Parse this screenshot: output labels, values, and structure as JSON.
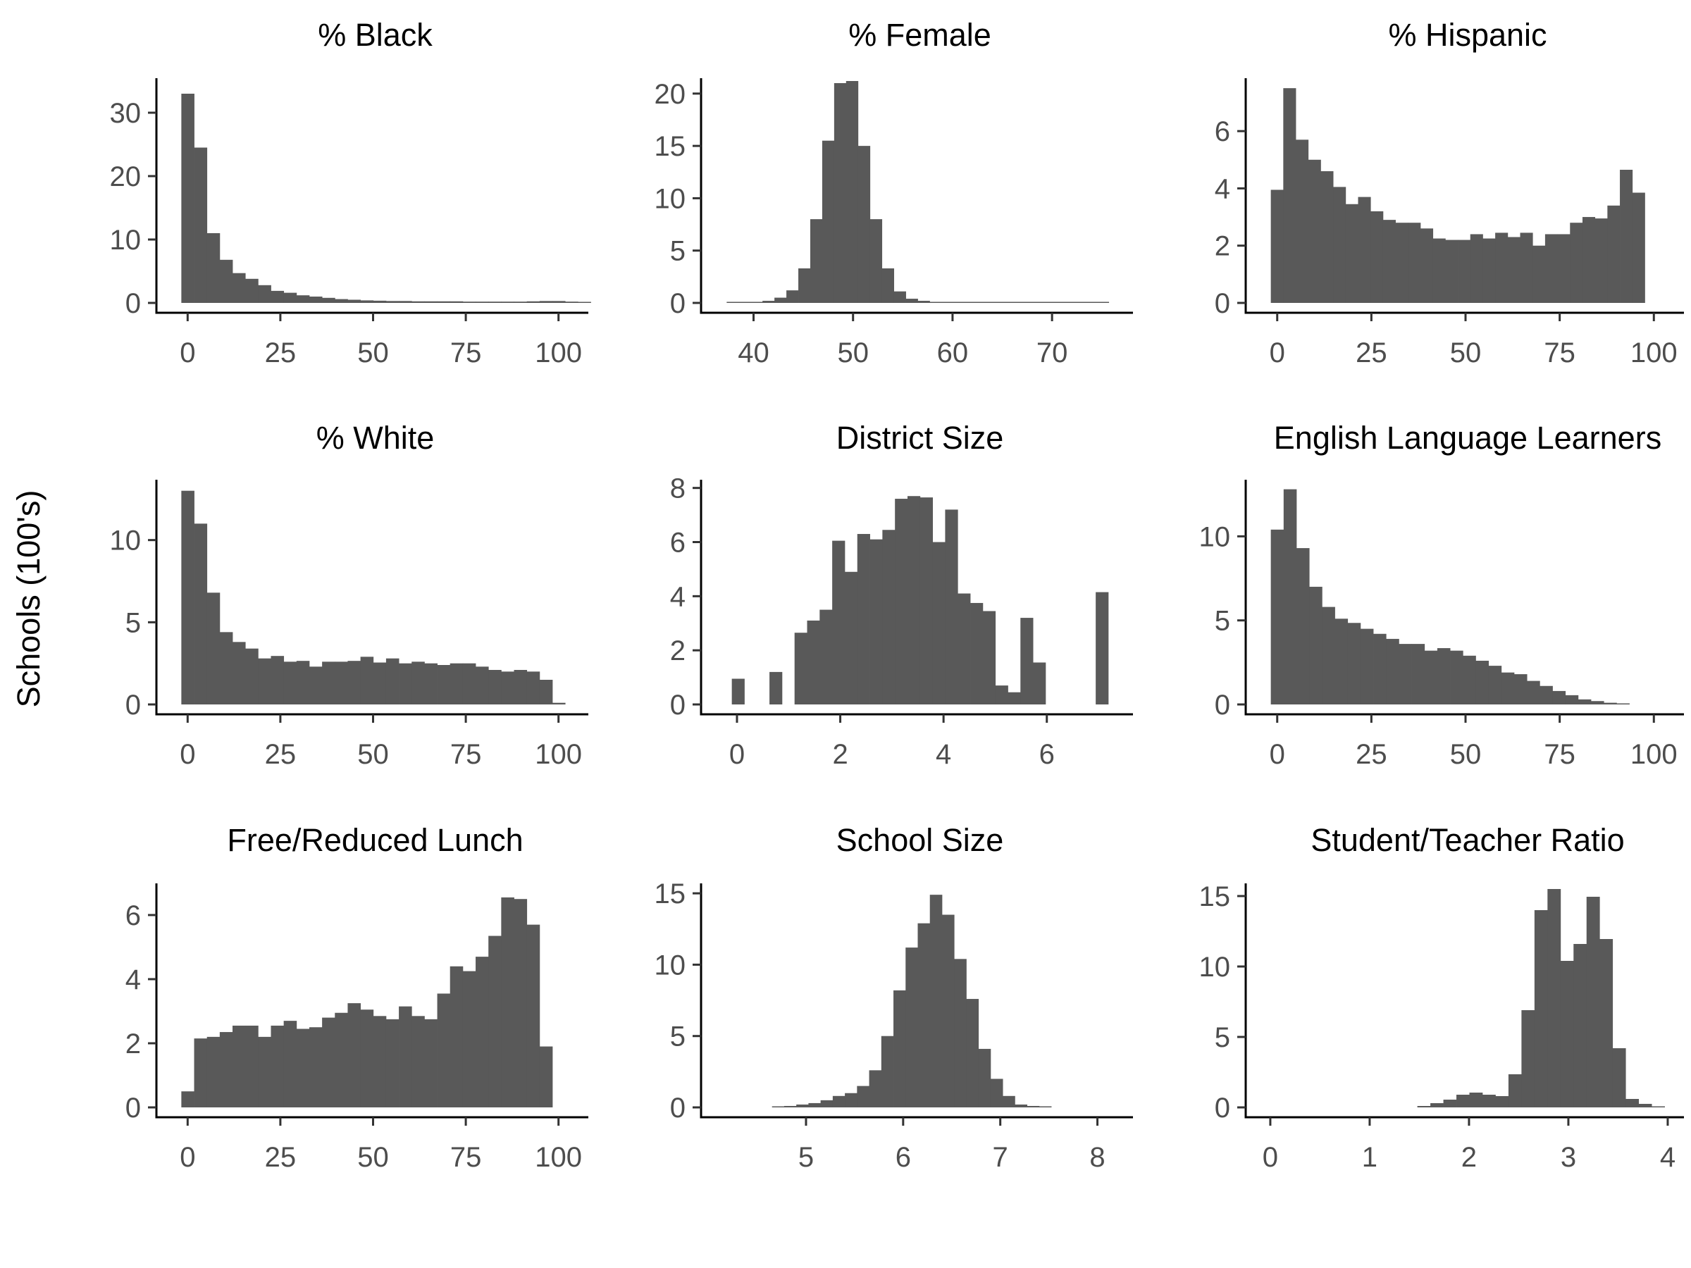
{
  "figure": {
    "ylabel": "Schools (100's)",
    "bar_color": "#595959",
    "axis_color": "#000000"
  },
  "chart_data": [
    {
      "type": "bar",
      "title": "% Black",
      "xlim": [
        -5,
        105
      ],
      "ylim": [
        0,
        35
      ],
      "xticks": [
        0,
        25,
        50,
        75,
        100
      ],
      "yticks": [
        0,
        10,
        20,
        30
      ],
      "bin_start": -1.7,
      "bin_width": 3.45,
      "values": [
        33,
        24.5,
        11,
        6.8,
        4.7,
        3.8,
        2.8,
        1.9,
        1.6,
        1.2,
        1.0,
        0.8,
        0.6,
        0.5,
        0.4,
        0.35,
        0.3,
        0.3,
        0.25,
        0.25,
        0.25,
        0.25,
        0.2,
        0.2,
        0.2,
        0.2,
        0.2,
        0.25,
        0.3,
        0.3,
        0.2,
        0.15
      ]
    },
    {
      "type": "bar",
      "title": "% Female",
      "xlim": [
        36,
        77
      ],
      "ylim": [
        0,
        21.2
      ],
      "xticks": [
        40,
        50,
        60,
        70
      ],
      "yticks": [
        0,
        5,
        10,
        15,
        20
      ],
      "bin_start": 37.3,
      "bin_width": 1.2,
      "values": [
        0.1,
        0.1,
        0.1,
        0.2,
        0.5,
        1.2,
        3.3,
        8.0,
        15.5,
        21.0,
        21.2,
        15.0,
        8.0,
        3.3,
        1.1,
        0.4,
        0.2,
        0.1,
        0.1,
        0.1,
        0.05,
        0.05,
        0.1,
        0.03,
        0.03,
        0.03,
        0.03,
        0.03,
        0.03,
        0.03,
        0.1,
        0.03
      ]
    },
    {
      "type": "bar",
      "title": "% Hispanic",
      "xlim": [
        -5,
        105
      ],
      "ylim": [
        0,
        7.75
      ],
      "xticks": [
        0,
        25,
        50,
        75,
        100
      ],
      "yticks": [
        0,
        2,
        4,
        6
      ],
      "bin_start": -1.7,
      "bin_width": 3.31,
      "values": [
        3.95,
        7.5,
        5.7,
        5.0,
        4.6,
        4.05,
        3.45,
        3.7,
        3.2,
        2.9,
        2.8,
        2.8,
        2.6,
        2.25,
        2.2,
        2.2,
        2.4,
        2.25,
        2.45,
        2.3,
        2.45,
        2.0,
        2.4,
        2.4,
        2.8,
        3.0,
        2.95,
        3.4,
        4.65,
        3.85
      ]
    },
    {
      "type": "bar",
      "title": "% White",
      "xlim": [
        -5,
        105
      ],
      "ylim": [
        0,
        13.5
      ],
      "xticks": [
        0,
        25,
        50,
        75,
        100
      ],
      "yticks": [
        0,
        5,
        10
      ],
      "bin_start": -1.7,
      "bin_width": 3.45,
      "values": [
        13.0,
        11.0,
        6.8,
        4.4,
        3.8,
        3.4,
        2.8,
        2.95,
        2.6,
        2.65,
        2.3,
        2.6,
        2.6,
        2.65,
        2.9,
        2.55,
        2.8,
        2.5,
        2.6,
        2.5,
        2.4,
        2.5,
        2.5,
        2.3,
        2.1,
        2.0,
        2.1,
        2.0,
        1.5,
        0.1
      ]
    },
    {
      "type": "bar",
      "title": "District Size",
      "xlim": [
        -0.45,
        7.45
      ],
      "ylim": [
        0,
        8.2
      ],
      "xticks": [
        0,
        2,
        4,
        6
      ],
      "yticks": [
        0,
        2,
        4,
        6,
        8
      ],
      "bin_start": -0.1,
      "bin_width": 0.243,
      "values": [
        0.95,
        0,
        0,
        1.2,
        0,
        2.65,
        3.1,
        3.5,
        6.05,
        4.9,
        6.3,
        6.1,
        6.45,
        7.6,
        7.7,
        7.65,
        6.0,
        7.2,
        4.1,
        3.75,
        3.45,
        0.7,
        0.45,
        3.2,
        1.55,
        0,
        0,
        0,
        0,
        4.15
      ]
    },
    {
      "type": "bar",
      "title": "English Language Learners",
      "xlim": [
        -5,
        105
      ],
      "ylim": [
        0,
        13.2
      ],
      "xticks": [
        0,
        25,
        50,
        75,
        100
      ],
      "yticks": [
        0,
        5,
        10
      ],
      "bin_start": -1.7,
      "bin_width": 3.4,
      "values": [
        10.4,
        12.8,
        9.3,
        7.0,
        5.8,
        5.1,
        4.85,
        4.5,
        4.2,
        3.9,
        3.6,
        3.6,
        3.2,
        3.35,
        3.2,
        2.9,
        2.6,
        2.3,
        1.9,
        1.8,
        1.4,
        1.1,
        0.8,
        0.55,
        0.3,
        0.2,
        0.1,
        0.05
      ]
    },
    {
      "type": "bar",
      "title": "Free/Reduced Lunch",
      "xlim": [
        -5,
        105
      ],
      "ylim": [
        0,
        6.9
      ],
      "xticks": [
        0,
        25,
        50,
        75,
        100
      ],
      "yticks": [
        0,
        2,
        4,
        6
      ],
      "bin_start": -1.7,
      "bin_width": 3.45,
      "values": [
        0.5,
        2.15,
        2.2,
        2.35,
        2.55,
        2.55,
        2.2,
        2.55,
        2.7,
        2.45,
        2.5,
        2.8,
        2.95,
        3.25,
        3.05,
        2.85,
        2.75,
        3.15,
        2.85,
        2.75,
        3.55,
        4.4,
        4.25,
        4.7,
        5.35,
        6.55,
        6.5,
        5.7,
        1.9
      ]
    },
    {
      "type": "bar",
      "title": "School Size",
      "xlim": [
        4.05,
        8.25
      ],
      "ylim": [
        0,
        15.5
      ],
      "xticks": [
        5,
        6,
        7,
        8
      ],
      "yticks": [
        0,
        5,
        10,
        15
      ],
      "bin_start": 4.65,
      "bin_width": 0.125,
      "values": [
        0.05,
        0.1,
        0.2,
        0.3,
        0.5,
        0.8,
        1.0,
        1.5,
        2.6,
        5.0,
        8.2,
        11.2,
        12.9,
        14.9,
        13.5,
        10.4,
        7.6,
        4.1,
        2.0,
        0.8,
        0.2,
        0.1,
        0.03
      ]
    },
    {
      "type": "bar",
      "title": "Student/Teacher Ratio",
      "xlim": [
        -0.12,
        4.05
      ],
      "ylim": [
        0,
        15.7
      ],
      "xticks": [
        0,
        1,
        2,
        3,
        4
      ],
      "yticks": [
        0,
        5,
        10,
        15
      ],
      "bin_start": 1.48,
      "bin_width": 0.131,
      "values": [
        0.1,
        0.3,
        0.55,
        0.9,
        1.05,
        0.9,
        0.8,
        2.35,
        6.9,
        14.0,
        15.5,
        10.4,
        11.6,
        14.95,
        11.95,
        4.2,
        0.6,
        0.25,
        0.05
      ]
    }
  ]
}
